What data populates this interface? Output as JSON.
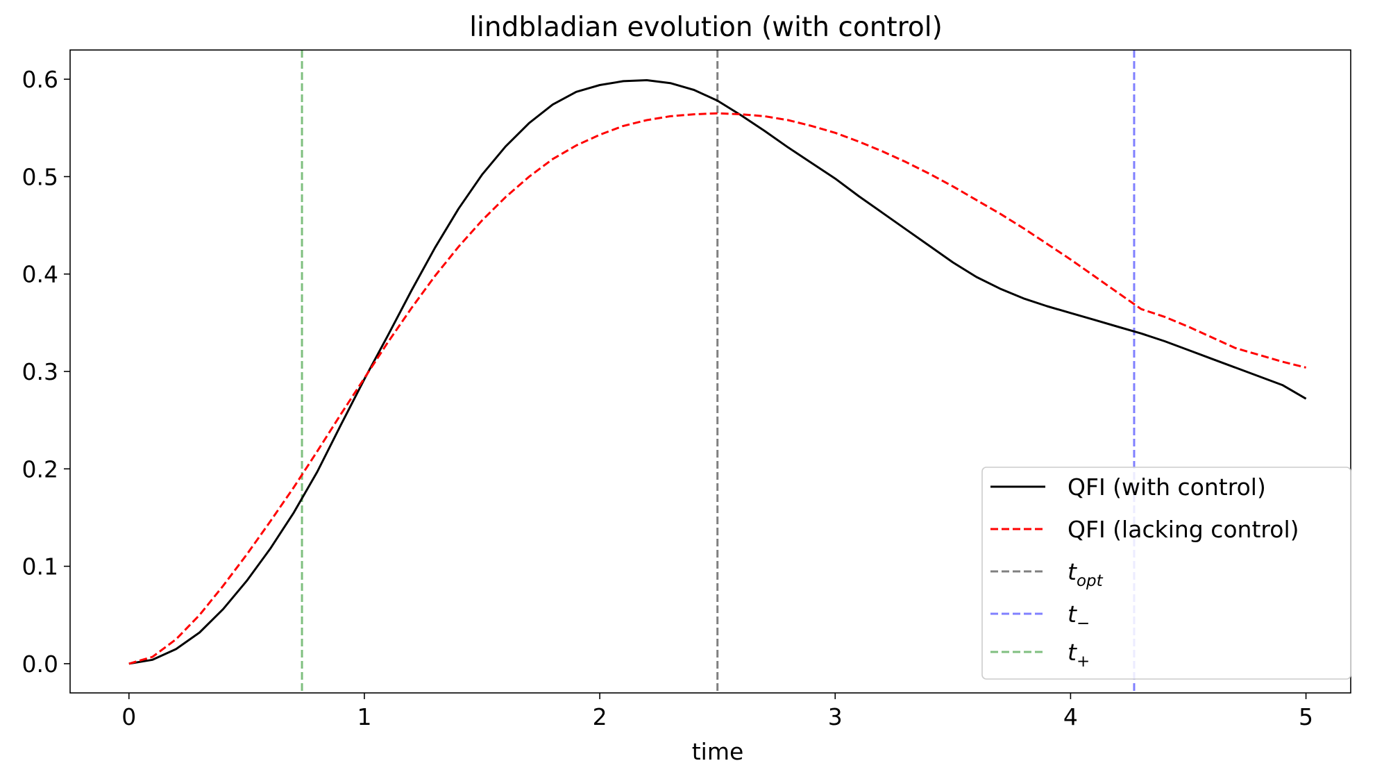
{
  "chart_data": {
    "type": "line",
    "title": "lindbladian evolution (with control)",
    "xlabel": "time",
    "ylabel": "",
    "xlim": [
      -0.25,
      5.19
    ],
    "ylim": [
      -0.03,
      0.63
    ],
    "x_ticks": [
      0,
      1,
      2,
      3,
      4,
      5
    ],
    "y_ticks": [
      0.0,
      0.1,
      0.2,
      0.3,
      0.4,
      0.5,
      0.6
    ],
    "x_tick_labels": [
      "0",
      "1",
      "2",
      "3",
      "4",
      "5"
    ],
    "y_tick_labels": [
      "0.0",
      "0.1",
      "0.2",
      "0.3",
      "0.4",
      "0.5",
      "0.6"
    ],
    "grid": false,
    "legend_position": "lower-right",
    "series": [
      {
        "name": "QFI (with control)",
        "color": "#000000",
        "style": "solid",
        "x": [
          0,
          0.1,
          0.2,
          0.3,
          0.4,
          0.5,
          0.6,
          0.7,
          0.8,
          0.9,
          1.0,
          1.1,
          1.2,
          1.3,
          1.4,
          1.5,
          1.6,
          1.7,
          1.8,
          1.9,
          2.0,
          2.1,
          2.2,
          2.3,
          2.4,
          2.5,
          2.6,
          2.7,
          2.8,
          2.9,
          3.0,
          3.1,
          3.2,
          3.3,
          3.4,
          3.5,
          3.6,
          3.7,
          3.8,
          3.9,
          4.0,
          4.1,
          4.2,
          4.3,
          4.4,
          4.5,
          4.6,
          4.7,
          4.8,
          4.9,
          5.0
        ],
        "y": [
          0.0,
          0.004,
          0.015,
          0.032,
          0.056,
          0.085,
          0.118,
          0.155,
          0.197,
          0.245,
          0.292,
          0.337,
          0.383,
          0.427,
          0.467,
          0.502,
          0.531,
          0.555,
          0.574,
          0.587,
          0.594,
          0.598,
          0.599,
          0.596,
          0.589,
          0.578,
          0.563,
          0.547,
          0.53,
          0.514,
          0.498,
          0.48,
          0.463,
          0.446,
          0.429,
          0.412,
          0.397,
          0.385,
          0.375,
          0.367,
          0.36,
          0.353,
          0.346,
          0.339,
          0.331,
          0.322,
          0.313,
          0.304,
          0.295,
          0.286,
          0.272
        ]
      },
      {
        "name": "QFI (lacking control)",
        "color": "#ff0000",
        "style": "dashed",
        "x": [
          0,
          0.1,
          0.2,
          0.3,
          0.4,
          0.5,
          0.6,
          0.7,
          0.8,
          0.9,
          1.0,
          1.1,
          1.2,
          1.3,
          1.4,
          1.5,
          1.6,
          1.7,
          1.8,
          1.9,
          2.0,
          2.1,
          2.2,
          2.3,
          2.4,
          2.5,
          2.6,
          2.7,
          2.8,
          2.9,
          3.0,
          3.1,
          3.2,
          3.3,
          3.4,
          3.5,
          3.6,
          3.7,
          3.8,
          3.9,
          4.0,
          4.1,
          4.2,
          4.3,
          4.4,
          4.5,
          4.6,
          4.7,
          4.8,
          4.9,
          5.0
        ],
        "y": [
          0.0,
          0.007,
          0.025,
          0.05,
          0.08,
          0.112,
          0.146,
          0.181,
          0.218,
          0.256,
          0.293,
          0.33,
          0.365,
          0.398,
          0.428,
          0.455,
          0.479,
          0.5,
          0.518,
          0.532,
          0.543,
          0.552,
          0.558,
          0.562,
          0.564,
          0.565,
          0.564,
          0.562,
          0.558,
          0.552,
          0.545,
          0.536,
          0.526,
          0.515,
          0.503,
          0.49,
          0.476,
          0.462,
          0.447,
          0.431,
          0.415,
          0.398,
          0.381,
          0.364,
          0.356,
          0.346,
          0.335,
          0.324,
          0.317,
          0.31,
          0.304
        ]
      }
    ],
    "vlines": [
      {
        "name": "t_opt",
        "x": 2.5,
        "color": "#808080"
      },
      {
        "name": "t_-",
        "x": 4.27,
        "color": "#8080ff"
      },
      {
        "name": "t_+",
        "x": 0.735,
        "color": "#7fbf7f"
      }
    ],
    "legend": [
      {
        "label": "QFI (with control)",
        "color": "#000000",
        "style": "solid"
      },
      {
        "label": "QFI (lacking control)",
        "color": "#ff0000",
        "style": "dashed"
      },
      {
        "label_main": "t",
        "label_sub": "opt",
        "color": "#808080",
        "style": "dashed"
      },
      {
        "label_main": "t",
        "label_sub": "−",
        "color": "#8080ff",
        "style": "dashed"
      },
      {
        "label_main": "t",
        "label_sub": "+",
        "color": "#7fbf7f",
        "style": "dashed"
      }
    ]
  }
}
